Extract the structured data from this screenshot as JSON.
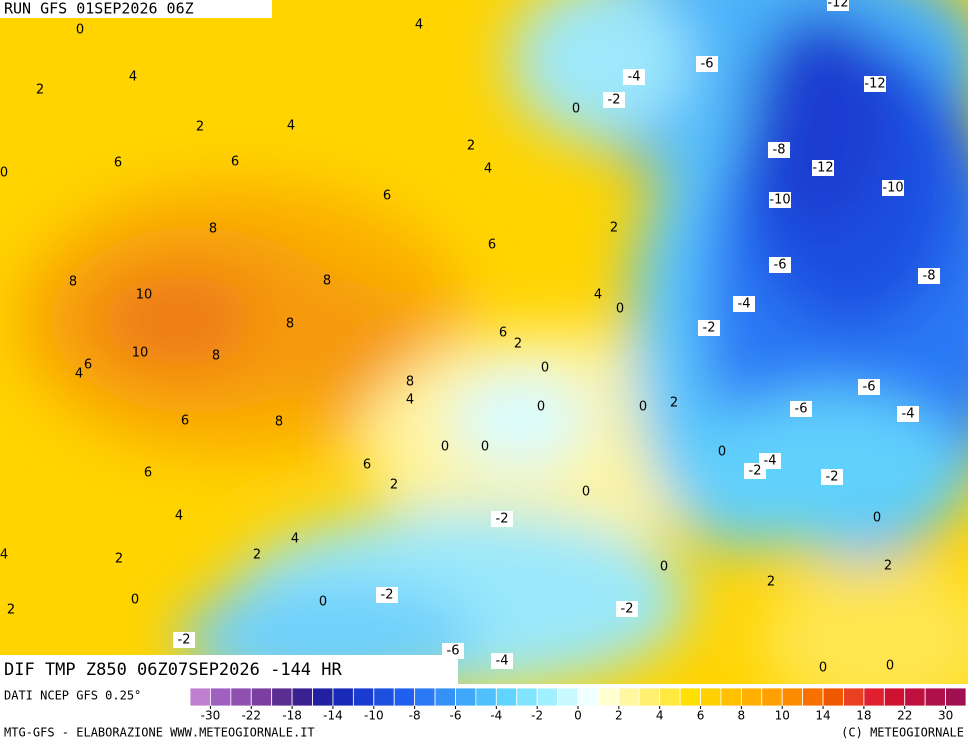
{
  "header": {
    "run": "RUN GFS 01SEP2026 06Z"
  },
  "footer": {
    "field": "DIF TMP Z850 06Z07SEP2026 -144 HR",
    "source": "DATI NCEP GFS 0.25°",
    "credit_left": "MTG-GFS - ELABORAZIONE WWW.METEOGIORNALE.IT",
    "credit_right": "(C) METEOGIORNALE"
  },
  "colorbar": {
    "colors": [
      "#c080d0",
      "#a060c0",
      "#9050b0",
      "#7a3fa0",
      "#5a2d90",
      "#3a2090",
      "#2020a0",
      "#1a2ab8",
      "#1a3cd0",
      "#1e50e0",
      "#2060f0",
      "#2a78f5",
      "#3590f8",
      "#40a8fa",
      "#50c0fc",
      "#60d4fd",
      "#80e4fe",
      "#a0f0ff",
      "#c8faff",
      "#f0ffff",
      "#ffffd0",
      "#fff8a0",
      "#fff070",
      "#ffe840",
      "#ffe000",
      "#ffd000",
      "#ffc000",
      "#ffb000",
      "#ffa000",
      "#ff8c00",
      "#f87000",
      "#f05800",
      "#e84020",
      "#e02030",
      "#d01030",
      "#c01040",
      "#b01048",
      "#a01050"
    ],
    "labels": [
      -30,
      -22,
      -18,
      -14,
      -10,
      -8,
      -6,
      -4,
      -2,
      0,
      2,
      4,
      6,
      8,
      10,
      14,
      18,
      22,
      30
    ]
  },
  "map": {
    "contour_labels": [
      0,
      4,
      -12,
      2,
      4,
      -4,
      -6,
      0,
      -2,
      -12,
      2,
      4,
      2,
      6,
      6,
      4,
      -8,
      -12,
      -10,
      0,
      6,
      -10,
      8,
      2,
      6,
      8,
      8,
      -6,
      -8,
      10,
      4,
      0,
      -4,
      8,
      6,
      2,
      -2,
      10,
      8,
      6,
      4,
      0,
      8,
      -6,
      4,
      0,
      0,
      2,
      -6,
      -4,
      6,
      8,
      0,
      0,
      0,
      -4,
      -2,
      6,
      6,
      -2,
      2,
      0,
      4,
      -2,
      0,
      4,
      2,
      2,
      4,
      0,
      2,
      2,
      0,
      0,
      -2,
      2,
      -2,
      -2,
      -6,
      -4,
      0,
      0
    ]
  }
}
